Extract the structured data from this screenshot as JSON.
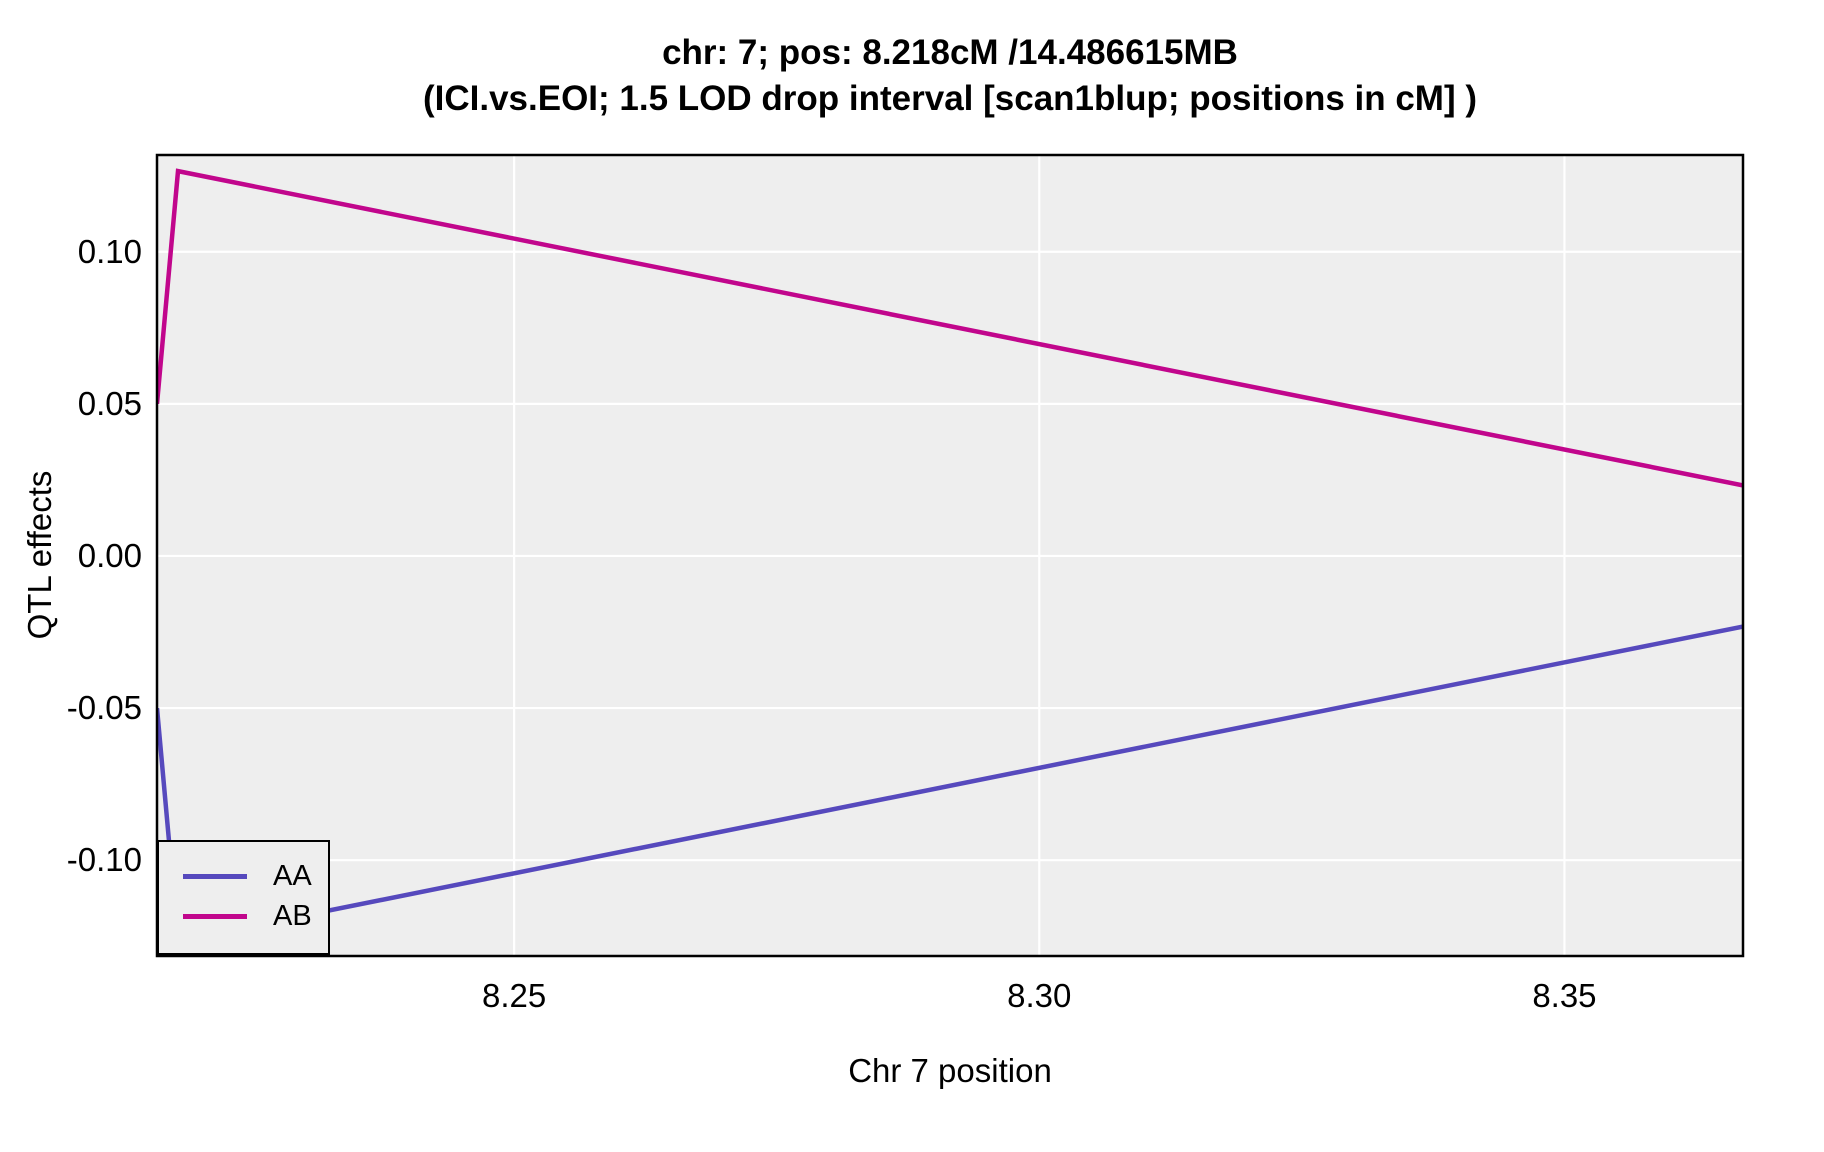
{
  "title": {
    "line1": "chr: 7; pos: 8.218cM /14.486615MB",
    "line2": "(ICI.vs.EOI; 1.5 LOD drop interval [scan1blup; positions in cM] )"
  },
  "chart_data": {
    "type": "line",
    "title": "chr: 7; pos: 8.218cM /14.486615MB (ICI.vs.EOI; 1.5 LOD drop interval [scan1blup; positions in cM] )",
    "xlabel": "Chr 7 position",
    "ylabel": "QTL effects",
    "xlim": [
      8.216,
      8.367
    ],
    "ylim": [
      -0.1315,
      0.1318
    ],
    "x_ticks": [
      8.25,
      8.3,
      8.35
    ],
    "x_tick_labels": [
      "8.25",
      "8.30",
      "8.35"
    ],
    "y_ticks": [
      0.1,
      0.05,
      0.0,
      -0.05,
      -0.1
    ],
    "y_tick_labels": [
      "0.10",
      "0.05",
      "0.00",
      "-0.05",
      "-0.10"
    ],
    "grid": true,
    "legend_position": "bottom-left",
    "series": [
      {
        "name": "AA",
        "color": "#5649BD",
        "points": [
          [
            8.216,
            -0.05
          ],
          [
            8.218,
            -0.1265
          ],
          [
            8.367,
            -0.0232
          ]
        ]
      },
      {
        "name": "AB",
        "color": "#C1068C",
        "points": [
          [
            8.216,
            0.05
          ],
          [
            8.218,
            0.1265
          ],
          [
            8.367,
            0.0232
          ]
        ]
      }
    ]
  },
  "style": {
    "panel_bg": "#EEEEEE",
    "grid_color": "#FFFFFF",
    "border_color": "#000000",
    "text_color": "#000000",
    "line_width": 4.5,
    "grid_width": 2.2,
    "border_width": 2.5
  }
}
